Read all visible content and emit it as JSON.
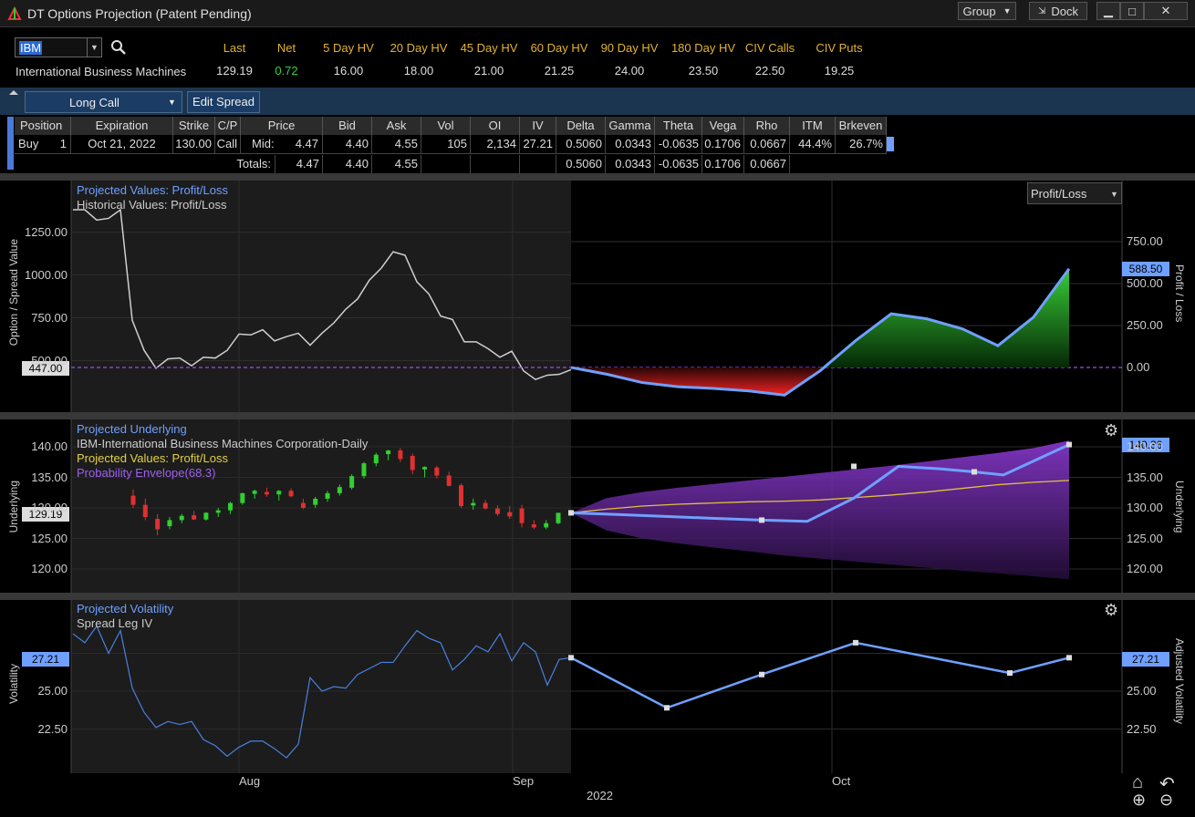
{
  "window": {
    "title": "DT Options Projection (Patent Pending)",
    "group_label": "Group",
    "dock_label": "Dock",
    "minimize": "▁",
    "maximize": "□",
    "close": "✕"
  },
  "quote": {
    "symbol": "IBM",
    "company": "International Business Machines",
    "headers": [
      "Last",
      "Net",
      "5 Day HV",
      "20 Day HV",
      "45 Day HV",
      "60 Day HV",
      "90 Day HV",
      "180 Day HV",
      "CIV Calls",
      "CIV Puts"
    ],
    "values": [
      "129.19",
      "0.72",
      "16.00",
      "18.00",
      "21.00",
      "21.25",
      "24.00",
      "23.50",
      "22.50",
      "19.25"
    ]
  },
  "strategy": {
    "selected": "Long Call",
    "edit_label": "Edit Spread"
  },
  "grid": {
    "headers": [
      "Position",
      "Expiration",
      "Strike",
      "C/P",
      "Price",
      "Bid",
      "Ask",
      "Vol",
      "OI",
      "IV",
      "Delta",
      "Gamma",
      "Theta",
      "Vega",
      "Rho",
      "ITM",
      "Brkeven"
    ],
    "row": {
      "side": "Buy",
      "qty": "1",
      "expiration": "Oct 21, 2022",
      "strike": "130.00",
      "cp": "Call",
      "price_label": "Mid:",
      "price": "4.47",
      "bid": "4.40",
      "ask": "4.55",
      "vol": "105",
      "oi": "2,134",
      "iv": "27.21",
      "delta": "0.5060",
      "gamma": "0.0343",
      "theta": "-0.0635",
      "vega": "0.1706",
      "rho": "0.0667",
      "itm": "44.4%",
      "brkeven": "26.7%"
    },
    "totals": {
      "label": "Totals:",
      "price": "4.47",
      "bid": "4.40",
      "ask": "4.55",
      "delta": "0.5060",
      "gamma": "0.0343",
      "theta": "-0.0635",
      "vega": "0.1706",
      "rho": "0.0667"
    }
  },
  "chart_data": [
    {
      "type": "line",
      "title": "",
      "legend": [
        "Projected Values: Profit/Loss",
        "Historical Values: Profit/Loss"
      ],
      "dropdown": "Profit/Loss",
      "ylabel_left": "Option / Spread Value",
      "ylabel_right": "Profit / Loss",
      "yticks_left": [
        "1250.00",
        "1000.00",
        "750.00",
        "500.00"
      ],
      "yticks_right": [
        "750.00",
        "500.00",
        "250.00",
        "0.00"
      ],
      "current_left": "447.00",
      "current_right": "588.50",
      "historical": [
        1380,
        1380,
        1320,
        1330,
        1380,
        735,
        560,
        455,
        510,
        515,
        470,
        520,
        515,
        560,
        655,
        650,
        680,
        615,
        640,
        660,
        590,
        660,
        720,
        800,
        860,
        970,
        1040,
        1135,
        1115,
        960,
        890,
        760,
        740,
        610,
        610,
        570,
        520,
        555,
        440,
        390,
        415,
        420,
        447
      ],
      "projected_pl": [
        0,
        -40,
        -90,
        -115,
        -125,
        -140,
        -165,
        -20,
        160,
        320,
        290,
        230,
        130,
        300,
        588
      ]
    },
    {
      "type": "line",
      "legend": [
        "Projected Underlying",
        "IBM-International Business Machines Corporation-Daily",
        "Projected Values: Profit/Loss",
        "Probability Envelope(68.3)"
      ],
      "ylabel_left": "Underlying",
      "ylabel_right": "Underlying",
      "yticks": [
        "140.00",
        "135.00",
        "130.00",
        "125.00",
        "120.00"
      ],
      "current_left": "129.19",
      "current_right": "140.36",
      "candles": [
        [
          132,
          133,
          130,
          130.5
        ],
        [
          130.5,
          131.5,
          128,
          128.5
        ],
        [
          128.2,
          129,
          125.5,
          126.5
        ],
        [
          127,
          128.5,
          126.5,
          128
        ],
        [
          128,
          129,
          127.5,
          128.7
        ],
        [
          128.8,
          129.5,
          128,
          128.1
        ],
        [
          128.1,
          129.3,
          127.9,
          129.2
        ],
        [
          129.2,
          130,
          128.5,
          129.6
        ],
        [
          129.6,
          131,
          129,
          130.8
        ],
        [
          130.8,
          132.5,
          130.5,
          132.4
        ],
        [
          132.3,
          133,
          131.5,
          132.8
        ],
        [
          132.6,
          133.3,
          131.8,
          132.2
        ],
        [
          132.2,
          132.9,
          131.2,
          132.8
        ],
        [
          132.8,
          133.2,
          131.7,
          131.9
        ],
        [
          130.8,
          131.5,
          129.8,
          130.0
        ],
        [
          130.5,
          131.8,
          130,
          131.5
        ],
        [
          131.5,
          132.8,
          131,
          132.4
        ],
        [
          132.4,
          133.8,
          132,
          133.4
        ],
        [
          133.3,
          135.5,
          133,
          135.2
        ],
        [
          135.2,
          137.5,
          134.8,
          137.3
        ],
        [
          137.3,
          139,
          136.8,
          138.7
        ],
        [
          138.8,
          139.5,
          137.8,
          139.4
        ],
        [
          139.4,
          139.8,
          137.5,
          138.0
        ],
        [
          138.5,
          138.9,
          135.5,
          136.2
        ],
        [
          136.3,
          136.8,
          135.0,
          136.7
        ],
        [
          136.6,
          136.9,
          134.8,
          135.3
        ],
        [
          135.3,
          135.9,
          133.5,
          133.6
        ],
        [
          133.7,
          134,
          130,
          130.3
        ],
        [
          130.4,
          131.5,
          129.7,
          130.8
        ],
        [
          130.8,
          131.3,
          129.7,
          129.9
        ],
        [
          129.9,
          130.4,
          128.7,
          129.0
        ],
        [
          129.3,
          130.3,
          128.2,
          128.6
        ],
        [
          129.9,
          130.5,
          126.8,
          127.5
        ],
        [
          127.3,
          128,
          126.5,
          126.8
        ],
        [
          126.8,
          128,
          126.5,
          127.5
        ],
        [
          127.5,
          129.2,
          127.3,
          129.19
        ]
      ],
      "projected_underlying": [
        129.19,
        128.9,
        128.6,
        128.3,
        128.0,
        127.8,
        131.6,
        136.8,
        136.4,
        135.9,
        135.4,
        137.8,
        140.36
      ],
      "projected_mid": [
        129.19,
        129.8,
        130.3,
        130.6,
        130.8,
        131.0,
        131.1,
        131.3,
        131.7,
        132.1,
        132.6,
        133.2,
        133.8,
        134.2,
        134.5
      ],
      "envelope_upper": [
        129.19,
        131.6,
        132.6,
        133.3,
        133.9,
        134.5,
        135.1,
        135.7,
        136.3,
        136.9,
        137.6,
        138.3,
        139.0,
        139.8,
        141.0
      ],
      "envelope_lower": [
        129.19,
        126.3,
        125.0,
        124.2,
        123.5,
        122.9,
        122.2,
        121.7,
        121.2,
        120.7,
        120.2,
        119.7,
        119.3,
        118.8,
        118.3
      ]
    },
    {
      "type": "line",
      "legend": [
        "Projected Volatility",
        "Spread Leg IV"
      ],
      "ylabel_left": "Volatility",
      "ylabel_right": "Adjusted Volatility",
      "yticks": [
        "25.00",
        "22.50"
      ],
      "current_left": "27.21",
      "current_right": "27.21",
      "historical_iv": [
        28.8,
        28.2,
        29.3,
        27.5,
        29.0,
        25.2,
        23.6,
        22.6,
        23.0,
        22.8,
        23.0,
        21.8,
        21.4,
        20.7,
        21.3,
        21.7,
        21.7,
        21.2,
        20.6,
        21.5,
        25.9,
        25.0,
        25.3,
        25.2,
        26.1,
        26.5,
        26.9,
        26.9,
        28.0,
        29.0,
        28.5,
        28.2,
        26.4,
        27.1,
        28.0,
        27.6,
        28.8,
        27.0,
        28.2,
        27.6,
        25.4,
        27.1,
        27.21
      ],
      "projected_iv": [
        27.21,
        23.9,
        26.1,
        28.2,
        26.2,
        27.21
      ],
      "xlabels": [
        "Aug",
        "Sep",
        "Oct"
      ],
      "year": "2022"
    }
  ],
  "icons": {
    "gear": "⚙",
    "home": "⌂",
    "undo": "↶",
    "zoom_in": "⊕",
    "zoom_out": "⊖"
  },
  "colors": {
    "accent": "#6fa0ff",
    "gold": "#e3b230",
    "green": "#33d33a",
    "purple": "#8a3cd8",
    "red": "#d83030"
  }
}
